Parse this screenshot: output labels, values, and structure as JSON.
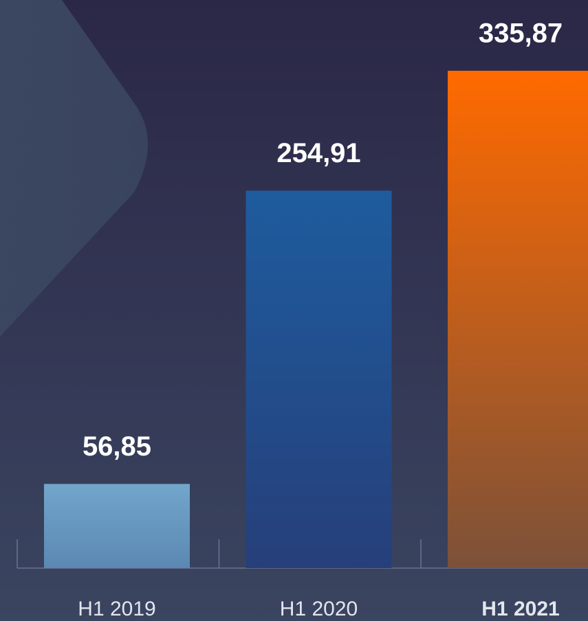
{
  "chart_data": {
    "type": "bar",
    "categories": [
      "H1 2019",
      "H1 2020",
      "H1 2021"
    ],
    "values": [
      56.85,
      254.91,
      335.87
    ],
    "value_labels": [
      "56,85",
      "254,91",
      "335,87"
    ],
    "colors": [
      [
        "#72a6cb",
        "#5b88b2"
      ],
      [
        "#1e5c9e",
        "#263f7a"
      ],
      [
        "#ff6a00",
        "#7c5139"
      ]
    ]
  }
}
